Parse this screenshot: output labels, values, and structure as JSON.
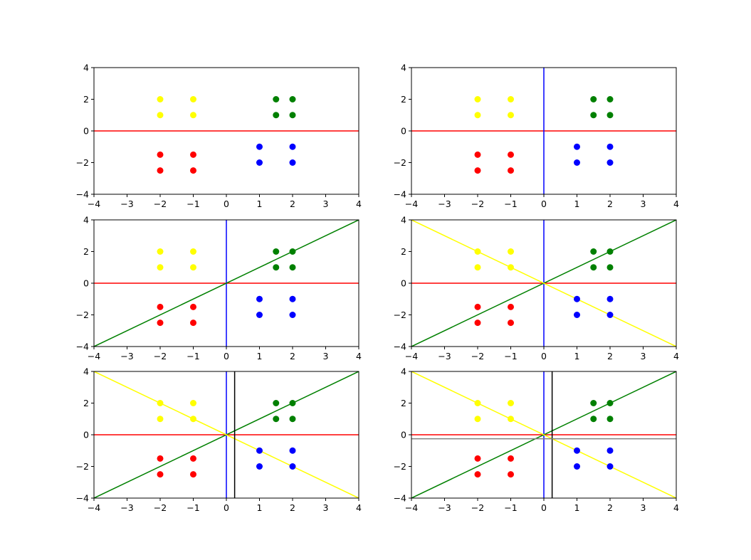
{
  "figure": {
    "background": "#ffffff",
    "rows": 3,
    "cols": 2
  },
  "chart_data": [
    {
      "type": "scatter",
      "xlim": [
        -4,
        4
      ],
      "ylim": [
        -4,
        4
      ],
      "xticks": [
        "−4",
        "−3",
        "−2",
        "−1",
        "0",
        "1",
        "2",
        "3",
        "4"
      ],
      "yticks": [
        "4",
        "2",
        "0",
        "−2",
        "−4"
      ],
      "grid": false,
      "series": [
        {
          "color": "#ffff00",
          "points": [
            [
              -2,
              2
            ],
            [
              -1,
              2
            ],
            [
              -2,
              1
            ],
            [
              -1,
              1
            ]
          ]
        },
        {
          "color": "#008000",
          "points": [
            [
              1.5,
              2
            ],
            [
              2,
              2
            ],
            [
              1.5,
              1
            ],
            [
              2,
              1
            ]
          ]
        },
        {
          "color": "#ff0000",
          "points": [
            [
              -2,
              -1.5
            ],
            [
              -1,
              -1.5
            ],
            [
              -2,
              -2.5
            ],
            [
              -1,
              -2.5
            ]
          ]
        },
        {
          "color": "#0000ff",
          "points": [
            [
              1,
              -1
            ],
            [
              2,
              -1
            ],
            [
              1,
              -2
            ],
            [
              2,
              -2
            ]
          ]
        }
      ],
      "lines": [
        {
          "color": "#ff0000",
          "from": [
            -4,
            0
          ],
          "to": [
            4,
            0
          ]
        }
      ]
    },
    {
      "type": "scatter",
      "xlim": [
        -4,
        4
      ],
      "ylim": [
        -4,
        4
      ],
      "xticks": [
        "−4",
        "−3",
        "−2",
        "−1",
        "0",
        "1",
        "2",
        "3",
        "4"
      ],
      "yticks": [
        "4",
        "2",
        "0",
        "−2",
        "−4"
      ],
      "grid": false,
      "series": [
        {
          "color": "#ffff00",
          "points": [
            [
              -2,
              2
            ],
            [
              -1,
              2
            ],
            [
              -2,
              1
            ],
            [
              -1,
              1
            ]
          ]
        },
        {
          "color": "#008000",
          "points": [
            [
              1.5,
              2
            ],
            [
              2,
              2
            ],
            [
              1.5,
              1
            ],
            [
              2,
              1
            ]
          ]
        },
        {
          "color": "#ff0000",
          "points": [
            [
              -2,
              -1.5
            ],
            [
              -1,
              -1.5
            ],
            [
              -2,
              -2.5
            ],
            [
              -1,
              -2.5
            ]
          ]
        },
        {
          "color": "#0000ff",
          "points": [
            [
              1,
              -1
            ],
            [
              2,
              -1
            ],
            [
              1,
              -2
            ],
            [
              2,
              -2
            ]
          ]
        }
      ],
      "lines": [
        {
          "color": "#ff0000",
          "from": [
            -4,
            0
          ],
          "to": [
            4,
            0
          ]
        },
        {
          "color": "#0000ff",
          "from": [
            0,
            -4
          ],
          "to": [
            0,
            4
          ]
        }
      ]
    },
    {
      "type": "scatter",
      "xlim": [
        -4,
        4
      ],
      "ylim": [
        -4,
        4
      ],
      "xticks": [
        "−4",
        "−3",
        "−2",
        "−1",
        "0",
        "1",
        "2",
        "3",
        "4"
      ],
      "yticks": [
        "4",
        "2",
        "0",
        "−2",
        "−4"
      ],
      "grid": false,
      "series": [
        {
          "color": "#ffff00",
          "points": [
            [
              -2,
              2
            ],
            [
              -1,
              2
            ],
            [
              -2,
              1
            ],
            [
              -1,
              1
            ]
          ]
        },
        {
          "color": "#008000",
          "points": [
            [
              1.5,
              2
            ],
            [
              2,
              2
            ],
            [
              1.5,
              1
            ],
            [
              2,
              1
            ]
          ]
        },
        {
          "color": "#ff0000",
          "points": [
            [
              -2,
              -1.5
            ],
            [
              -1,
              -1.5
            ],
            [
              -2,
              -2.5
            ],
            [
              -1,
              -2.5
            ]
          ]
        },
        {
          "color": "#0000ff",
          "points": [
            [
              1,
              -1
            ],
            [
              2,
              -1
            ],
            [
              1,
              -2
            ],
            [
              2,
              -2
            ]
          ]
        }
      ],
      "lines": [
        {
          "color": "#ff0000",
          "from": [
            -4,
            0
          ],
          "to": [
            4,
            0
          ]
        },
        {
          "color": "#0000ff",
          "from": [
            0,
            -4
          ],
          "to": [
            0,
            4
          ]
        },
        {
          "color": "#008000",
          "from": [
            -4,
            -4
          ],
          "to": [
            4,
            4
          ]
        }
      ]
    },
    {
      "type": "scatter",
      "xlim": [
        -4,
        4
      ],
      "ylim": [
        -4,
        4
      ],
      "xticks": [
        "−4",
        "−3",
        "−2",
        "−1",
        "0",
        "1",
        "2",
        "3",
        "4"
      ],
      "yticks": [
        "4",
        "2",
        "0",
        "−2",
        "−4"
      ],
      "grid": false,
      "series": [
        {
          "color": "#ffff00",
          "points": [
            [
              -2,
              2
            ],
            [
              -1,
              2
            ],
            [
              -2,
              1
            ],
            [
              -1,
              1
            ]
          ]
        },
        {
          "color": "#008000",
          "points": [
            [
              1.5,
              2
            ],
            [
              2,
              2
            ],
            [
              1.5,
              1
            ],
            [
              2,
              1
            ]
          ]
        },
        {
          "color": "#ff0000",
          "points": [
            [
              -2,
              -1.5
            ],
            [
              -1,
              -1.5
            ],
            [
              -2,
              -2.5
            ],
            [
              -1,
              -2.5
            ]
          ]
        },
        {
          "color": "#0000ff",
          "points": [
            [
              1,
              -1
            ],
            [
              2,
              -1
            ],
            [
              1,
              -2
            ],
            [
              2,
              -2
            ]
          ]
        }
      ],
      "lines": [
        {
          "color": "#ff0000",
          "from": [
            -4,
            0
          ],
          "to": [
            4,
            0
          ]
        },
        {
          "color": "#0000ff",
          "from": [
            0,
            -4
          ],
          "to": [
            0,
            4
          ]
        },
        {
          "color": "#008000",
          "from": [
            -4,
            -4
          ],
          "to": [
            4,
            4
          ]
        },
        {
          "color": "#ffff00",
          "from": [
            -4,
            4
          ],
          "to": [
            4,
            -4
          ]
        }
      ]
    },
    {
      "type": "scatter",
      "xlim": [
        -4,
        4
      ],
      "ylim": [
        -4,
        4
      ],
      "xticks": [
        "−4",
        "−3",
        "−2",
        "−1",
        "0",
        "1",
        "2",
        "3",
        "4"
      ],
      "yticks": [
        "4",
        "2",
        "0",
        "−2",
        "−4"
      ],
      "grid": false,
      "series": [
        {
          "color": "#ffff00",
          "points": [
            [
              -2,
              2
            ],
            [
              -1,
              2
            ],
            [
              -2,
              1
            ],
            [
              -1,
              1
            ]
          ]
        },
        {
          "color": "#008000",
          "points": [
            [
              1.5,
              2
            ],
            [
              2,
              2
            ],
            [
              1.5,
              1
            ],
            [
              2,
              1
            ]
          ]
        },
        {
          "color": "#ff0000",
          "points": [
            [
              -2,
              -1.5
            ],
            [
              -1,
              -1.5
            ],
            [
              -2,
              -2.5
            ],
            [
              -1,
              -2.5
            ]
          ]
        },
        {
          "color": "#0000ff",
          "points": [
            [
              1,
              -1
            ],
            [
              2,
              -1
            ],
            [
              1,
              -2
            ],
            [
              2,
              -2
            ]
          ]
        }
      ],
      "lines": [
        {
          "color": "#ff0000",
          "from": [
            -4,
            0
          ],
          "to": [
            4,
            0
          ]
        },
        {
          "color": "#0000ff",
          "from": [
            0,
            -4
          ],
          "to": [
            0,
            4
          ]
        },
        {
          "color": "#008000",
          "from": [
            -4,
            -4
          ],
          "to": [
            4,
            4
          ]
        },
        {
          "color": "#ffff00",
          "from": [
            -4,
            4
          ],
          "to": [
            4,
            -4
          ]
        },
        {
          "color": "#000000",
          "from": [
            0.25,
            -4
          ],
          "to": [
            0.25,
            4
          ]
        }
      ]
    },
    {
      "type": "scatter",
      "xlim": [
        -4,
        4
      ],
      "ylim": [
        -4,
        4
      ],
      "xticks": [
        "−4",
        "−3",
        "−2",
        "−1",
        "0",
        "1",
        "2",
        "3",
        "4"
      ],
      "yticks": [
        "4",
        "2",
        "0",
        "−2",
        "−4"
      ],
      "grid": false,
      "series": [
        {
          "color": "#ffff00",
          "points": [
            [
              -2,
              2
            ],
            [
              -1,
              2
            ],
            [
              -2,
              1
            ],
            [
              -1,
              1
            ]
          ]
        },
        {
          "color": "#008000",
          "points": [
            [
              1.5,
              2
            ],
            [
              2,
              2
            ],
            [
              1.5,
              1
            ],
            [
              2,
              1
            ]
          ]
        },
        {
          "color": "#ff0000",
          "points": [
            [
              -2,
              -1.5
            ],
            [
              -1,
              -1.5
            ],
            [
              -2,
              -2.5
            ],
            [
              -1,
              -2.5
            ]
          ]
        },
        {
          "color": "#0000ff",
          "points": [
            [
              1,
              -1
            ],
            [
              2,
              -1
            ],
            [
              1,
              -2
            ],
            [
              2,
              -2
            ]
          ]
        }
      ],
      "lines": [
        {
          "color": "#ff0000",
          "from": [
            -4,
            0
          ],
          "to": [
            4,
            0
          ]
        },
        {
          "color": "#0000ff",
          "from": [
            0,
            -4
          ],
          "to": [
            0,
            4
          ]
        },
        {
          "color": "#008000",
          "from": [
            -4,
            -4
          ],
          "to": [
            4,
            4
          ]
        },
        {
          "color": "#ffff00",
          "from": [
            -4,
            4
          ],
          "to": [
            4,
            -4
          ]
        },
        {
          "color": "#000000",
          "from": [
            0.25,
            -4
          ],
          "to": [
            0.25,
            4
          ]
        },
        {
          "color": "#808080",
          "from": [
            -4,
            -0.25
          ],
          "to": [
            4,
            -0.25
          ]
        }
      ]
    }
  ]
}
